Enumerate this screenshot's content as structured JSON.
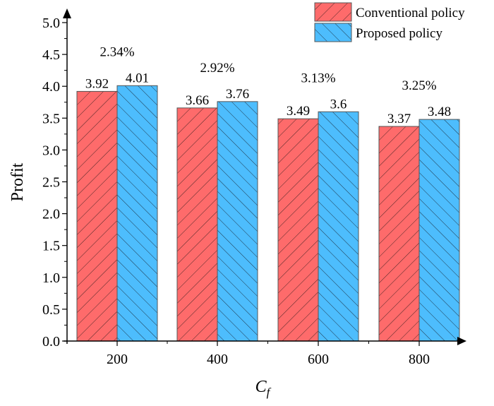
{
  "chart_data": {
    "type": "bar",
    "title": "",
    "xlabel": "C",
    "xlabel_subscript": "f",
    "ylabel": "Profit",
    "categories": [
      "200",
      "400",
      "600",
      "800"
    ],
    "series": [
      {
        "name": "Conventional policy",
        "values": [
          3.92,
          3.66,
          3.49,
          3.37
        ],
        "color": "#fe6b6b",
        "hatch": "forward-diagonal"
      },
      {
        "name": "Proposed policy",
        "values": [
          4.01,
          3.76,
          3.6,
          3.48
        ],
        "color": "#4dbdfd",
        "hatch": "backward-diagonal"
      }
    ],
    "data_labels": [
      [
        "3.92",
        "3.66",
        "3.49",
        "3.37"
      ],
      [
        "4.01",
        "3.76",
        "3.6",
        "3.48"
      ]
    ],
    "annotations": [
      "2.34%",
      "2.92%",
      "3.13%",
      "3.25%"
    ],
    "ylim": [
      0,
      5.0
    ],
    "yticks": [
      "0.0",
      "0.5",
      "1.0",
      "1.5",
      "2.0",
      "2.5",
      "3.0",
      "3.5",
      "4.0",
      "4.5",
      "5.0"
    ],
    "ytick_values": [
      0,
      0.5,
      1.0,
      1.5,
      2.0,
      2.5,
      3.0,
      3.5,
      4.0,
      4.5,
      5.0
    ],
    "grid": false,
    "legend_position": "top-right"
  }
}
